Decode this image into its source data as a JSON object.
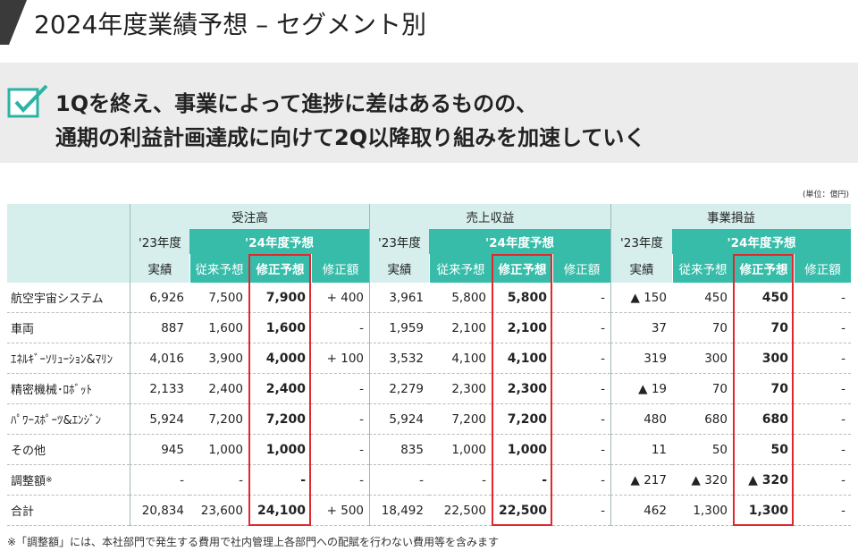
{
  "header": {
    "title": "2024年度業績予想 – セグメント別"
  },
  "banner": {
    "lines": [
      "1Qを終え、事業によって進捗に差はあるものの、",
      "通期の利益計画達成に向けて2Q以降取り組みを加速していく"
    ]
  },
  "unit": "(単位：億円)",
  "table": {
    "groups": [
      {
        "title": "受注高",
        "prior_year": "'23年度",
        "prior_label": "実績",
        "forecast": "'24年度予想",
        "columns": [
          "従来予想",
          "修正予想",
          "修正額"
        ]
      },
      {
        "title": "売上収益",
        "prior_year": "'23年度",
        "prior_label": "実績",
        "forecast": "'24年度予想",
        "columns": [
          "従来予想",
          "修正予想",
          "修正額"
        ]
      },
      {
        "title": "事業損益",
        "prior_year": "'23年度",
        "prior_label": "実績",
        "forecast": "'24年度予想",
        "columns": [
          "従来予想",
          "修正予想",
          "修正額"
        ]
      }
    ],
    "rows": [
      {
        "name": "航空宇宙システム",
        "cells": [
          "6,926",
          "7,500",
          "7,900",
          "+ 400",
          "3,961",
          "5,800",
          "5,800",
          "-",
          "▲ 150",
          "450",
          "450",
          "-"
        ]
      },
      {
        "name": "車両",
        "cells": [
          "887",
          "1,600",
          "1,600",
          "-",
          "1,959",
          "2,100",
          "2,100",
          "-",
          "37",
          "70",
          "70",
          "-"
        ]
      },
      {
        "name": "ｴﾈﾙｷﾞｰｿﾘｭｰｼｮﾝ&ﾏﾘﾝ",
        "cells": [
          "4,016",
          "3,900",
          "4,000",
          "+ 100",
          "3,532",
          "4,100",
          "4,100",
          "-",
          "319",
          "300",
          "300",
          "-"
        ]
      },
      {
        "name": "精密機械･ﾛﾎﾞｯﾄ",
        "cells": [
          "2,133",
          "2,400",
          "2,400",
          "-",
          "2,279",
          "2,300",
          "2,300",
          "-",
          "▲ 19",
          "70",
          "70",
          "-"
        ]
      },
      {
        "name": "ﾊﾟﾜｰｽﾎﾟｰﾂ&ｴﾝｼﾞﾝ",
        "cells": [
          "5,924",
          "7,200",
          "7,200",
          "-",
          "5,924",
          "7,200",
          "7,200",
          "-",
          "480",
          "680",
          "680",
          "-"
        ]
      },
      {
        "name": "その他",
        "cells": [
          "945",
          "1,000",
          "1,000",
          "-",
          "835",
          "1,000",
          "1,000",
          "-",
          "11",
          "50",
          "50",
          "-"
        ]
      },
      {
        "name": "調整額",
        "mark": "※",
        "cells": [
          "-",
          "-",
          "-",
          "-",
          "-",
          "-",
          "-",
          "-",
          "▲ 217",
          "▲ 320",
          "▲ 320",
          "-"
        ]
      },
      {
        "name": "合計",
        "cells": [
          "20,834",
          "23,600",
          "24,100",
          "+ 500",
          "18,492",
          "22,500",
          "22,500",
          "-",
          "462",
          "1,300",
          "1,300",
          "-"
        ]
      }
    ]
  },
  "footnote": "※「調整額」には、本社部門で発生する費用で社内管理上各部門への配賦を行わない費用等を含みます"
}
